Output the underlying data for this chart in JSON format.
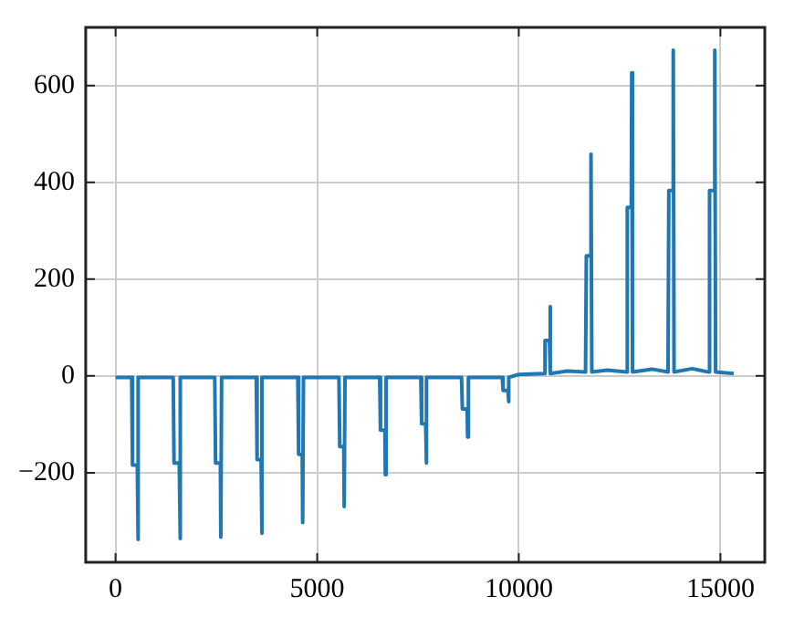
{
  "chart_data": {
    "type": "line",
    "xlim": [
      -740,
      16100
    ],
    "xticks": [
      0,
      5000,
      10000,
      15000
    ],
    "ylim": [
      -385,
      720
    ],
    "yticks": [
      -200,
      0,
      200,
      400,
      600
    ],
    "grid": true,
    "legend": false,
    "marker": "none",
    "line_style": "solid",
    "series": [
      {
        "color": "#1f77b4",
        "x": [
          0,
          400,
          420,
          540,
          550,
          570,
          1430,
          1450,
          1580,
          1595,
          1615,
          2460,
          2480,
          2600,
          2610,
          2630,
          3490,
          3510,
          3610,
          3620,
          3640,
          4520,
          4540,
          4630,
          4640,
          4660,
          5540,
          5560,
          5660,
          5670,
          5690,
          6550,
          6570,
          6680,
          6690,
          6710,
          7570,
          7590,
          7690,
          7700,
          7720,
          8580,
          8600,
          8720,
          8730,
          8750,
          9590,
          9610,
          9730,
          9740,
          9760,
          10000,
          10630,
          10650,
          10760,
          10770,
          10790,
          11200,
          11655,
          11675,
          11780,
          11790,
          11810,
          12200,
          12670,
          12690,
          12790,
          12800,
          12820,
          13300,
          13700,
          13720,
          13820,
          13830,
          13850,
          14300,
          14710,
          14730,
          14850,
          14860,
          14880,
          15330
        ],
        "values": [
          -3,
          -3,
          -184,
          -184,
          -338,
          -3,
          -3,
          -180,
          -180,
          -336,
          -3,
          -3,
          -180,
          -180,
          -333,
          -3,
          -3,
          -173,
          -173,
          -325,
          -3,
          -3,
          -162,
          -162,
          -303,
          -3,
          -3,
          -146,
          -146,
          -270,
          -3,
          -3,
          -112,
          -112,
          -204,
          -3,
          -3,
          -99,
          -99,
          -180,
          -3,
          -3,
          -68,
          -68,
          -126,
          -3,
          -3,
          -30,
          -30,
          -53,
          -3,
          3,
          5,
          73,
          73,
          143,
          5,
          10,
          8,
          248,
          248,
          458,
          8,
          12,
          8,
          348,
          348,
          626,
          8,
          14,
          8,
          383,
          383,
          673,
          8,
          15,
          8,
          383,
          383,
          673,
          8,
          5
        ]
      }
    ]
  }
}
